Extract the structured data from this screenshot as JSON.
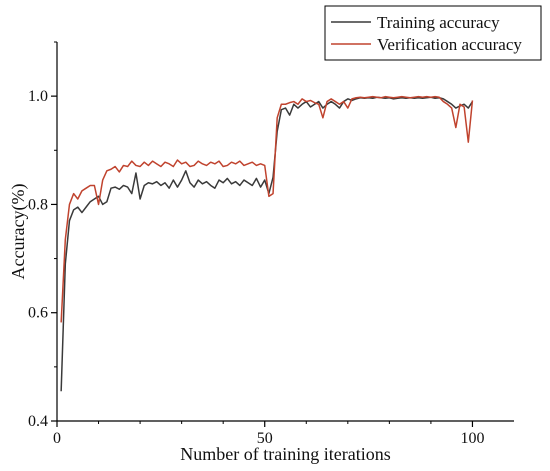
{
  "chart_data": {
    "type": "line",
    "title": "",
    "xlabel": "Number of training iterations",
    "ylabel": "Accuracy(%)",
    "xlim": [
      0,
      110
    ],
    "ylim": [
      0.4,
      1.1
    ],
    "x_ticks": [
      0,
      50,
      100
    ],
    "y_ticks": [
      0.4,
      0.6,
      0.8,
      1.0
    ],
    "x_tick_labels": [
      "0",
      "50",
      "100"
    ],
    "y_tick_labels": [
      "0.4",
      "0.6",
      "0.8",
      "1.0"
    ],
    "grid": false,
    "legend_position": "top-right",
    "x": [
      1,
      2,
      3,
      4,
      5,
      6,
      7,
      8,
      9,
      10,
      11,
      12,
      13,
      14,
      15,
      16,
      17,
      18,
      19,
      20,
      21,
      22,
      23,
      24,
      25,
      26,
      27,
      28,
      29,
      30,
      31,
      32,
      33,
      34,
      35,
      36,
      37,
      38,
      39,
      40,
      41,
      42,
      43,
      44,
      45,
      46,
      47,
      48,
      49,
      50,
      51,
      52,
      53,
      54,
      55,
      56,
      57,
      58,
      59,
      60,
      61,
      62,
      63,
      64,
      65,
      66,
      67,
      68,
      69,
      70,
      71,
      72,
      73,
      74,
      75,
      76,
      77,
      78,
      79,
      80,
      81,
      82,
      83,
      84,
      85,
      86,
      87,
      88,
      89,
      90,
      91,
      92,
      93,
      94,
      95,
      96,
      97,
      98,
      99,
      100
    ],
    "series": [
      {
        "name": "Training accuracy",
        "color": "#3a3a3a",
        "values": [
          0.455,
          0.69,
          0.77,
          0.79,
          0.795,
          0.785,
          0.795,
          0.805,
          0.81,
          0.815,
          0.8,
          0.805,
          0.83,
          0.832,
          0.828,
          0.835,
          0.832,
          0.82,
          0.858,
          0.81,
          0.835,
          0.84,
          0.838,
          0.842,
          0.835,
          0.84,
          0.83,
          0.845,
          0.832,
          0.845,
          0.862,
          0.84,
          0.832,
          0.845,
          0.838,
          0.842,
          0.835,
          0.83,
          0.845,
          0.84,
          0.848,
          0.838,
          0.842,
          0.835,
          0.845,
          0.84,
          0.835,
          0.848,
          0.832,
          0.845,
          0.82,
          0.85,
          0.935,
          0.975,
          0.978,
          0.965,
          0.985,
          0.978,
          0.985,
          0.99,
          0.98,
          0.985,
          0.99,
          0.978,
          0.985,
          0.99,
          0.985,
          0.978,
          0.99,
          0.995,
          0.992,
          0.995,
          0.997,
          0.996,
          0.997,
          0.996,
          0.998,
          0.997,
          0.996,
          0.997,
          0.995,
          0.996,
          0.997,
          0.996,
          0.997,
          0.996,
          0.997,
          0.996,
          0.997,
          0.998,
          0.996,
          0.997,
          0.995,
          0.99,
          0.985,
          0.978,
          0.982,
          0.985,
          0.978,
          0.99
        ]
      },
      {
        "name": "Verification accuracy",
        "color": "#c0432e",
        "values": [
          0.582,
          0.735,
          0.8,
          0.82,
          0.81,
          0.825,
          0.83,
          0.835,
          0.835,
          0.8,
          0.845,
          0.862,
          0.865,
          0.87,
          0.86,
          0.872,
          0.87,
          0.88,
          0.872,
          0.87,
          0.878,
          0.872,
          0.88,
          0.875,
          0.87,
          0.878,
          0.875,
          0.87,
          0.882,
          0.875,
          0.878,
          0.87,
          0.872,
          0.88,
          0.875,
          0.872,
          0.878,
          0.875,
          0.88,
          0.87,
          0.872,
          0.878,
          0.875,
          0.88,
          0.872,
          0.875,
          0.878,
          0.872,
          0.875,
          0.872,
          0.815,
          0.82,
          0.96,
          0.985,
          0.985,
          0.988,
          0.99,
          0.985,
          0.995,
          0.99,
          0.992,
          0.988,
          0.985,
          0.96,
          0.99,
          0.995,
          0.99,
          0.985,
          0.99,
          0.978,
          0.995,
          0.997,
          0.998,
          0.997,
          0.998,
          0.999,
          0.998,
          0.997,
          0.999,
          0.998,
          0.997,
          0.998,
          0.999,
          0.998,
          0.997,
          0.998,
          0.999,
          0.998,
          0.999,
          0.998,
          0.999,
          0.998,
          0.99,
          0.985,
          0.978,
          0.942,
          0.985,
          0.98,
          0.915,
          0.992
        ]
      }
    ]
  }
}
